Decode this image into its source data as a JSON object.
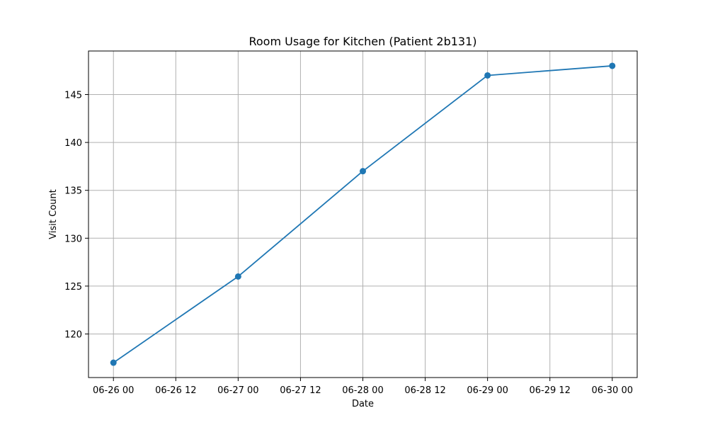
{
  "chart_data": {
    "type": "line",
    "title": "Room Usage for Kitchen (Patient 2b131)",
    "xlabel": "Date",
    "ylabel": "Visit Count",
    "x": [
      "06-26 00",
      "06-27 00",
      "06-28 00",
      "06-29 00",
      "06-30 00"
    ],
    "x_hours": [
      0,
      24,
      48,
      72,
      96
    ],
    "series": [
      {
        "values": [
          117,
          126,
          137,
          147,
          148
        ],
        "color": "#1f77b4",
        "marker": "circle"
      }
    ],
    "x_ticks": [
      {
        "label": "06-26 00",
        "hours": 0
      },
      {
        "label": "06-26 12",
        "hours": 12
      },
      {
        "label": "06-27 00",
        "hours": 24
      },
      {
        "label": "06-27 12",
        "hours": 36
      },
      {
        "label": "06-28 00",
        "hours": 48
      },
      {
        "label": "06-28 12",
        "hours": 60
      },
      {
        "label": "06-29 00",
        "hours": 72
      },
      {
        "label": "06-29 12",
        "hours": 84
      },
      {
        "label": "06-30 00",
        "hours": 96
      }
    ],
    "y_ticks": [
      120,
      125,
      130,
      135,
      140,
      145
    ],
    "xlim_hours": [
      -4.8,
      100.8
    ],
    "ylim": [
      115.45,
      149.55
    ],
    "grid": true,
    "grid_color": "#b0b0b0",
    "axes_color": "#000000"
  }
}
